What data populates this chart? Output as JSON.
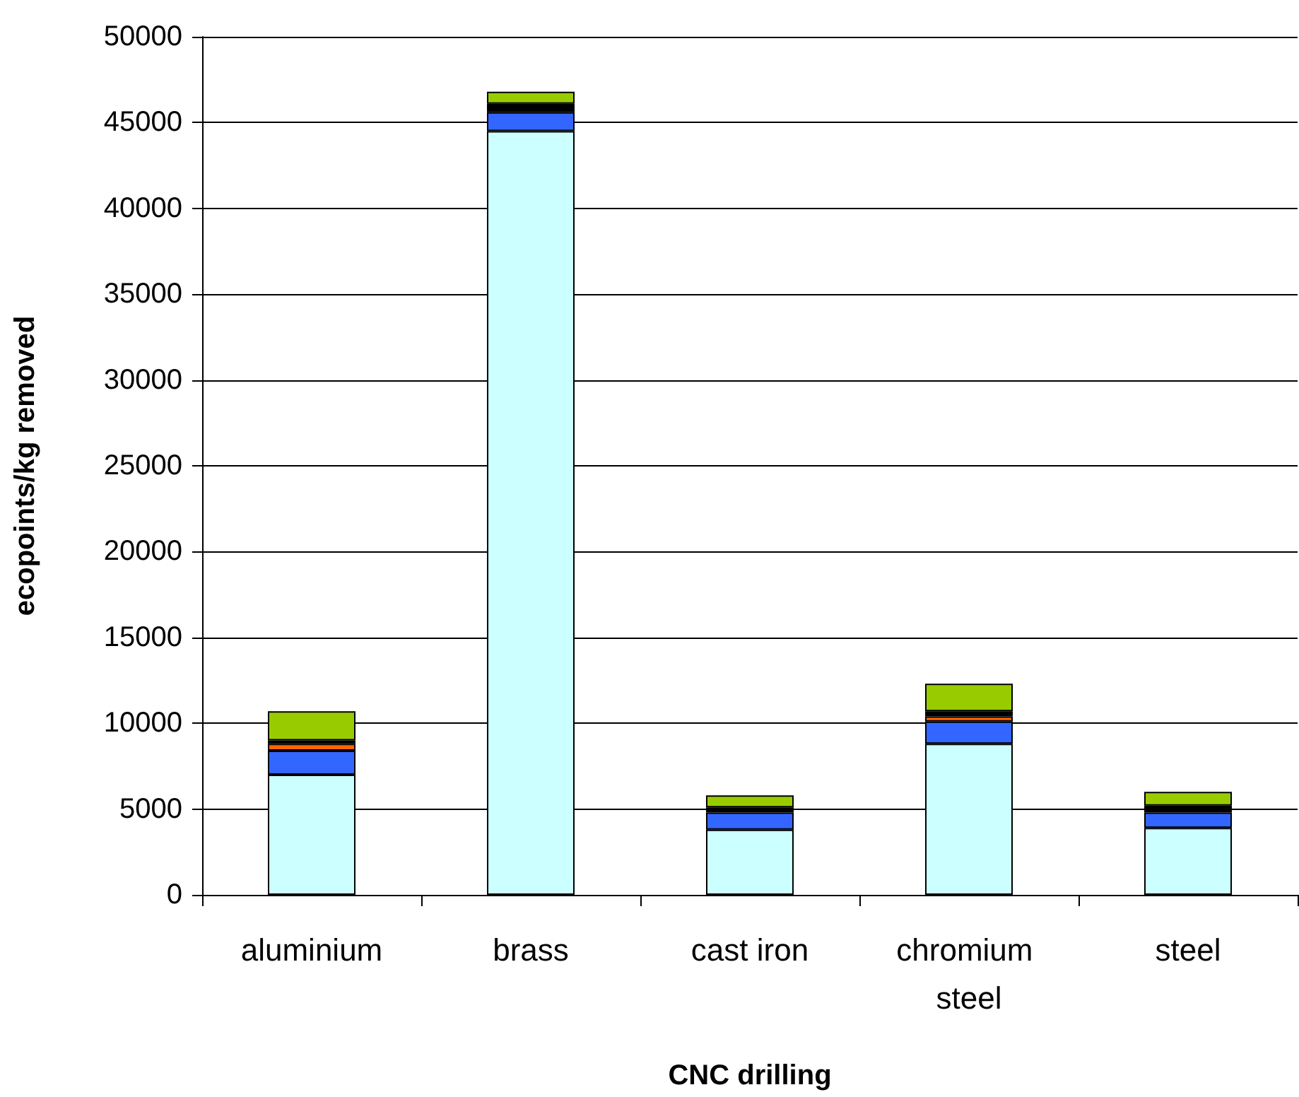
{
  "chart_data": {
    "type": "bar",
    "stacked": true,
    "xlabel": "CNC drilling",
    "ylabel": "ecopoints/kg removed",
    "categories": [
      "aluminium",
      "brass",
      "cast iron",
      "chromium steel",
      "steel"
    ],
    "series": [
      {
        "color": "#ccffff",
        "values": [
          7000,
          44500,
          3800,
          8800,
          3900
        ]
      },
      {
        "color": "#3366ff",
        "values": [
          1400,
          1100,
          1000,
          1300,
          900
        ]
      },
      {
        "color": "#ff6600",
        "values": [
          400,
          null,
          null,
          300,
          null
        ]
      },
      {
        "color": "#000000",
        "values": [
          200,
          500,
          300,
          300,
          400
        ]
      },
      {
        "color": "#99cc00",
        "values": [
          1700,
          700,
          700,
          1600,
          800
        ]
      }
    ],
    "ylim": [
      0,
      50000
    ],
    "yticks": [
      0,
      5000,
      10000,
      15000,
      20000,
      25000,
      30000,
      35000,
      40000,
      45000,
      50000
    ],
    "grid": "y"
  }
}
